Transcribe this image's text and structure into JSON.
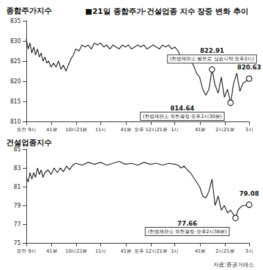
{
  "title": "■21일 종합주가·건설업종 지수 장중 변화 추이",
  "source": "자료:증권거래소",
  "chart_data": [
    {
      "type": "line",
      "ylabel": "종합주가지수",
      "color": "#222222",
      "grid": false,
      "xlim": [
        0,
        360
      ],
      "xticks": [
        {
          "value": 0,
          "label": "오전 9시"
        },
        {
          "value": 41,
          "label": "41분"
        },
        {
          "value": 81,
          "label": "10시21분"
        },
        {
          "value": 120,
          "label": "11시"
        },
        {
          "value": 161,
          "label": "41분"
        },
        {
          "value": 201,
          "label": "오후 12시21분"
        },
        {
          "value": 240,
          "label": "1시"
        },
        {
          "value": 281,
          "label": "41분"
        },
        {
          "value": 321,
          "label": "2시21분"
        },
        {
          "value": 360,
          "label": "3시"
        }
      ],
      "ylim": [
        810,
        835
      ],
      "yticks": [
        810,
        815,
        820,
        825,
        830,
        835
      ],
      "x": [
        0,
        3,
        6,
        9,
        12,
        15,
        18,
        21,
        24,
        27,
        30,
        33,
        36,
        40,
        44,
        48,
        52,
        56,
        60,
        64,
        68,
        72,
        76,
        80,
        85,
        90,
        95,
        100,
        105,
        110,
        115,
        120,
        125,
        130,
        135,
        140,
        145,
        150,
        155,
        160,
        165,
        170,
        175,
        180,
        185,
        190,
        195,
        200,
        205,
        210,
        215,
        220,
        225,
        230,
        235,
        240,
        245,
        250,
        255,
        260,
        265,
        270,
        275,
        280,
        285,
        290,
        295,
        300,
        305,
        310,
        315,
        320,
        325,
        330,
        335,
        340,
        345,
        350,
        355,
        360
      ],
      "values": [
        830.5,
        828,
        829.5,
        827,
        828.5,
        826.5,
        828,
        826,
        827,
        825,
        826,
        824.5,
        825,
        823.5,
        824.5,
        823.5,
        825,
        823,
        824,
        822.5,
        824,
        825.5,
        826.5,
        828,
        827.5,
        829,
        828.5,
        829,
        828,
        829.5,
        829,
        829.5,
        828.5,
        829,
        828,
        829,
        828.5,
        828,
        829,
        828.5,
        829,
        828,
        828.5,
        829,
        828.5,
        829,
        828,
        828.5,
        829,
        828.5,
        828,
        829,
        828.5,
        829,
        828,
        828.5,
        827.5,
        826,
        826.5,
        825.5,
        825,
        824,
        822,
        821,
        818,
        816.5,
        818,
        822.91,
        819,
        817,
        821,
        816,
        818,
        814.64,
        819.5,
        822,
        817.5,
        819.5,
        820,
        820.63
      ],
      "annotations": [
        {
          "x": 300,
          "y": 822.91,
          "text": "(헌법재판소 발표로 상승시작·오후2시)"
        },
        {
          "x": 330,
          "y": 814.64,
          "text": "(헌법재판소 위헌결정·오후2시30분)"
        },
        {
          "x": 360,
          "y": 820.63
        }
      ]
    },
    {
      "type": "line",
      "ylabel": "건설업종지수",
      "color": "#222222",
      "grid": false,
      "xlim": [
        0,
        360
      ],
      "xticks": [
        {
          "value": 0,
          "label": "오전 9시"
        },
        {
          "value": 41,
          "label": "41분"
        },
        {
          "value": 81,
          "label": "10시21분"
        },
        {
          "value": 120,
          "label": "11시"
        },
        {
          "value": 161,
          "label": "41분"
        },
        {
          "value": 201,
          "label": "오후 12시21분"
        },
        {
          "value": 240,
          "label": "1시"
        },
        {
          "value": 281,
          "label": "41분"
        },
        {
          "value": 321,
          "label": "2시21분"
        },
        {
          "value": 360,
          "label": "3시"
        }
      ],
      "ylim": [
        75,
        85
      ],
      "yticks": [
        75,
        77,
        79,
        81,
        83,
        85
      ],
      "x": [
        0,
        3,
        6,
        9,
        12,
        15,
        18,
        21,
        24,
        27,
        30,
        35,
        40,
        45,
        50,
        55,
        60,
        65,
        70,
        75,
        80,
        90,
        100,
        110,
        120,
        130,
        140,
        150,
        160,
        170,
        180,
        190,
        200,
        210,
        220,
        230,
        240,
        245,
        250,
        255,
        260,
        265,
        270,
        275,
        280,
        285,
        290,
        295,
        300,
        305,
        310,
        315,
        320,
        325,
        330,
        335,
        338,
        342,
        346,
        350,
        355,
        360
      ],
      "values": [
        82,
        81.5,
        82.5,
        81.8,
        82.5,
        82,
        83,
        82.3,
        82.8,
        82,
        82.5,
        82.8,
        82.3,
        83,
        82.5,
        83,
        82.6,
        83.2,
        82.8,
        83.3,
        83.5,
        83.3,
        83.6,
        83.4,
        83.6,
        83.3,
        83.5,
        83.7,
        83.4,
        83.5,
        83.3,
        83.6,
        83.4,
        83.5,
        83.3,
        83.5,
        83.4,
        83.3,
        83,
        83.2,
        82.8,
        82.5,
        82,
        81.5,
        81,
        80,
        79.8,
        80.5,
        81.8,
        79,
        80,
        78.5,
        79,
        78.2,
        78.5,
        78,
        77.66,
        78.5,
        78.8,
        79,
        79,
        79.08
      ],
      "annotations": [
        {
          "x": 338,
          "y": 77.66,
          "text": "(헌법재판소 위헌결정·오후2시38분)"
        },
        {
          "x": 360,
          "y": 79.08
        }
      ]
    }
  ]
}
